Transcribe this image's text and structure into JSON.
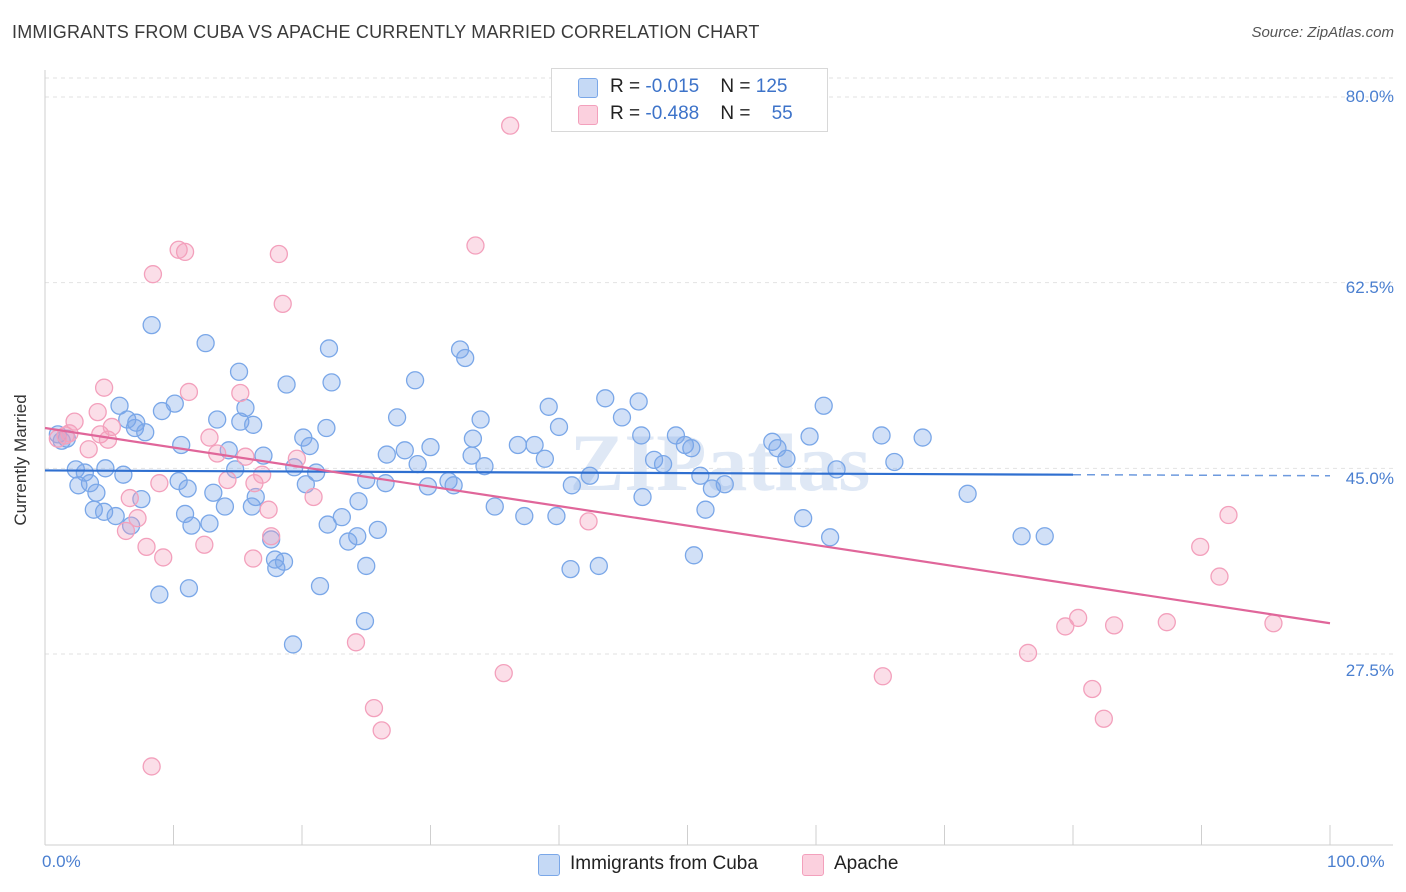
{
  "title": "IMMIGRANTS FROM CUBA VS APACHE CURRENTLY MARRIED CORRELATION CHART",
  "source": "Source: ZipAtlas.com",
  "chart_data": {
    "type": "scatter",
    "title": "IMMIGRANTS FROM CUBA VS APACHE CURRENTLY MARRIED CORRELATION CHART",
    "ylabel": "Currently Married",
    "xlabel": "",
    "xlim": [
      0,
      100
    ],
    "ylim": [
      10,
      82
    ],
    "x_ticks": [
      "0.0%",
      "100.0%"
    ],
    "y_ticks": [
      {
        "value": 80.0,
        "label": "80.0%"
      },
      {
        "value": 62.5,
        "label": "62.5%"
      },
      {
        "value": 45.0,
        "label": "45.0%"
      },
      {
        "value": 27.5,
        "label": "27.5%"
      }
    ],
    "grid": true,
    "legend_position": "top-center",
    "watermark": "ZIPatlas",
    "series": [
      {
        "name": "Immigrants from Cuba",
        "color": "#7aa7e8",
        "line_color": "#2f6fd0",
        "R": "-0.015",
        "N": "125",
        "trend": {
          "x": [
            0,
            80
          ],
          "y": [
            44.8,
            44.4
          ],
          "dashed_to": 100
        },
        "points": [
          [
            1,
            48.2
          ],
          [
            1.3,
            47.6
          ],
          [
            1.7,
            47.8
          ],
          [
            2.4,
            44.9
          ],
          [
            3.1,
            44.6
          ],
          [
            3.5,
            43.6
          ],
          [
            4,
            42.7
          ],
          [
            2.6,
            43.4
          ],
          [
            3.8,
            41.1
          ],
          [
            4.6,
            40.9
          ],
          [
            4.7,
            45
          ],
          [
            5.8,
            50.9
          ],
          [
            6.4,
            49.6
          ],
          [
            7,
            48.8
          ],
          [
            7.1,
            49.3
          ],
          [
            7.8,
            48.4
          ],
          [
            6.1,
            44.4
          ],
          [
            7.5,
            42.1
          ],
          [
            6.7,
            39.6
          ],
          [
            5.5,
            40.5
          ],
          [
            8.3,
            58.5
          ],
          [
            9.1,
            50.4
          ],
          [
            10.1,
            51.1
          ],
          [
            10.6,
            47.2
          ],
          [
            10.4,
            43.8
          ],
          [
            11.1,
            43.1
          ],
          [
            10.9,
            40.7
          ],
          [
            11.2,
            33.7
          ],
          [
            8.9,
            33.1
          ],
          [
            11.4,
            39.6
          ],
          [
            12.5,
            56.8
          ],
          [
            13.4,
            49.6
          ],
          [
            14.3,
            46.7
          ],
          [
            14.8,
            44.9
          ],
          [
            12.8,
            39.8
          ],
          [
            13.1,
            42.7
          ],
          [
            14,
            41.4
          ],
          [
            15.2,
            49.4
          ],
          [
            15.6,
            50.7
          ],
          [
            15.1,
            54.1
          ],
          [
            16.2,
            49.1
          ],
          [
            16.4,
            42.3
          ],
          [
            16.1,
            41.4
          ],
          [
            17,
            46.2
          ],
          [
            17.6,
            38.3
          ],
          [
            17.9,
            36.4
          ],
          [
            18,
            35.6
          ],
          [
            18.8,
            52.9
          ],
          [
            19.4,
            45.1
          ],
          [
            18.6,
            36.2
          ],
          [
            19.3,
            28.4
          ],
          [
            20.1,
            47.9
          ],
          [
            20.3,
            43.5
          ],
          [
            20.6,
            47.1
          ],
          [
            21.1,
            44.6
          ],
          [
            22,
            39.7
          ],
          [
            21.4,
            33.9
          ],
          [
            21.9,
            48.8
          ],
          [
            22.3,
            53.1
          ],
          [
            22.1,
            56.3
          ],
          [
            23.1,
            40.4
          ],
          [
            24.3,
            38.6
          ],
          [
            23.6,
            38.1
          ],
          [
            25,
            43.9
          ],
          [
            24.4,
            41.9
          ],
          [
            25,
            35.8
          ],
          [
            24.9,
            30.6
          ],
          [
            25.9,
            39.2
          ],
          [
            26.5,
            43.6
          ],
          [
            26.6,
            46.3
          ],
          [
            27.4,
            49.8
          ],
          [
            28,
            46.7
          ],
          [
            28.8,
            53.3
          ],
          [
            29,
            45.4
          ],
          [
            29.8,
            43.3
          ],
          [
            30,
            47
          ],
          [
            31.4,
            43.8
          ],
          [
            31.8,
            43.4
          ],
          [
            32.3,
            56.2
          ],
          [
            32.7,
            55.4
          ],
          [
            33.2,
            46.2
          ],
          [
            33.3,
            47.8
          ],
          [
            34.2,
            45.2
          ],
          [
            33.9,
            49.6
          ],
          [
            35,
            41.4
          ],
          [
            36.8,
            47.2
          ],
          [
            37.3,
            40.5
          ],
          [
            38.1,
            47.2
          ],
          [
            38.9,
            45.9
          ],
          [
            39.2,
            50.8
          ],
          [
            39.8,
            40.5
          ],
          [
            40,
            48.9
          ],
          [
            41,
            43.4
          ],
          [
            42.4,
            44.3
          ],
          [
            43.1,
            35.8
          ],
          [
            43.6,
            51.6
          ],
          [
            44.9,
            49.8
          ],
          [
            46.2,
            51.3
          ],
          [
            46.4,
            48.1
          ],
          [
            46.5,
            42.3
          ],
          [
            47.4,
            45.8
          ],
          [
            48.1,
            45.4
          ],
          [
            49.1,
            48.1
          ],
          [
            49.8,
            47.2
          ],
          [
            50.3,
            46.9
          ],
          [
            50.5,
            36.8
          ],
          [
            51,
            44.3
          ],
          [
            51.4,
            41.1
          ],
          [
            51.9,
            43.1
          ],
          [
            52.9,
            43.5
          ],
          [
            56.6,
            47.5
          ],
          [
            57.7,
            45.9
          ],
          [
            57,
            46.9
          ],
          [
            59,
            40.3
          ],
          [
            61.1,
            38.5
          ],
          [
            59.5,
            48
          ],
          [
            61.6,
            44.9
          ],
          [
            65.1,
            48.1
          ],
          [
            66.1,
            45.6
          ],
          [
            71.8,
            42.6
          ],
          [
            76,
            38.6
          ],
          [
            77.8,
            38.6
          ],
          [
            68.3,
            47.9
          ],
          [
            60.6,
            50.9
          ],
          [
            40.9,
            35.5
          ]
        ]
      },
      {
        "name": "Apache",
        "color": "#f3a0bc",
        "line_color": "#e0669a",
        "R": "-0.488",
        "N": "55",
        "trend": {
          "x": [
            0,
            100
          ],
          "y": [
            48.8,
            30.4
          ],
          "dashed_to": 100
        },
        "points": [
          [
            1,
            47.8
          ],
          [
            1.6,
            48.1
          ],
          [
            1.9,
            48.3
          ],
          [
            2.3,
            49.4
          ],
          [
            3.4,
            46.8
          ],
          [
            4.1,
            50.3
          ],
          [
            4.3,
            48.2
          ],
          [
            4.6,
            52.6
          ],
          [
            4.9,
            47.7
          ],
          [
            5.2,
            48.9
          ],
          [
            6.6,
            42.2
          ],
          [
            6.3,
            39.1
          ],
          [
            7.2,
            40.3
          ],
          [
            7.9,
            37.6
          ],
          [
            8.3,
            16.9
          ],
          [
            8.9,
            43.6
          ],
          [
            9.2,
            36.6
          ],
          [
            8.4,
            63.3
          ],
          [
            10.4,
            65.6
          ],
          [
            10.9,
            65.4
          ],
          [
            11.2,
            52.2
          ],
          [
            12.4,
            37.8
          ],
          [
            12.8,
            47.9
          ],
          [
            13.4,
            46.4
          ],
          [
            14.2,
            43.9
          ],
          [
            15.2,
            52.1
          ],
          [
            15.6,
            46.1
          ],
          [
            16.3,
            43.6
          ],
          [
            16.2,
            36.5
          ],
          [
            16.9,
            44.4
          ],
          [
            17.4,
            41.1
          ],
          [
            17.6,
            38.6
          ],
          [
            18.2,
            65.2
          ],
          [
            18.5,
            60.5
          ],
          [
            19.6,
            45.9
          ],
          [
            20.9,
            42.3
          ],
          [
            24.2,
            28.6
          ],
          [
            25.6,
            22.4
          ],
          [
            26.2,
            20.3
          ],
          [
            33.5,
            66
          ],
          [
            35.7,
            25.7
          ],
          [
            36.2,
            77.3
          ],
          [
            42.3,
            40
          ],
          [
            65.2,
            25.4
          ],
          [
            76.5,
            27.6
          ],
          [
            79.4,
            30.1
          ],
          [
            80.4,
            30.9
          ],
          [
            81.5,
            24.2
          ],
          [
            82.4,
            21.4
          ],
          [
            83.2,
            30.2
          ],
          [
            87.3,
            30.5
          ],
          [
            89.9,
            37.6
          ],
          [
            91.4,
            34.8
          ],
          [
            92.1,
            40.6
          ],
          [
            95.6,
            30.4
          ]
        ]
      }
    ]
  },
  "legend": {
    "rows": [
      {
        "r_label": "R = ",
        "r_value": "-0.015",
        "n_label": "N = ",
        "n_value": "125"
      },
      {
        "r_label": "R = ",
        "r_value": "-0.488",
        "n_label": "N = ",
        "n_value": "55"
      }
    ]
  }
}
